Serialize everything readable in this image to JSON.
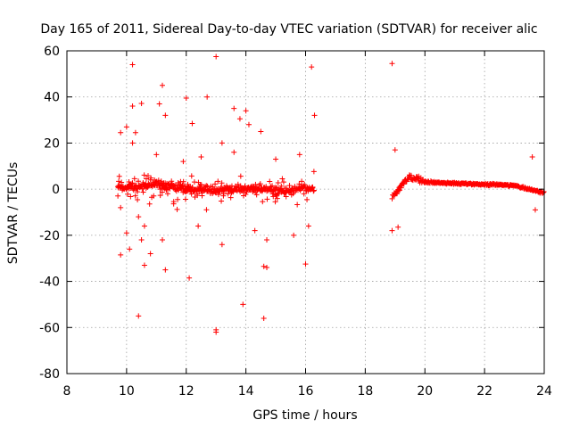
{
  "chart_data": {
    "type": "scatter",
    "title": "Day 165 of 2011, Sidereal Day-to-day VTEC variation (SDTVAR) for receiver alic",
    "xlabel": "GPS time / hours",
    "ylabel": "SDTVAR / TECUs",
    "xlim": [
      8,
      24
    ],
    "ylim": [
      -80,
      60
    ],
    "xticks": [
      8,
      10,
      12,
      14,
      16,
      18,
      20,
      22,
      24
    ],
    "yticks": [
      -80,
      -60,
      -40,
      -20,
      0,
      20,
      40,
      60
    ],
    "grid": true,
    "marker": "+",
    "color": "#ff0000",
    "series": [
      {
        "name": "SDTVAR",
        "trace": [
          [
            9.7,
            1.5
          ],
          [
            10.0,
            0.5
          ],
          [
            10.5,
            1.2
          ],
          [
            11.0,
            1.8
          ],
          [
            11.5,
            1.0
          ],
          [
            12.0,
            0.3
          ],
          [
            12.5,
            -0.5
          ],
          [
            13.0,
            -0.3
          ],
          [
            13.5,
            0.3
          ],
          [
            14.0,
            0.5
          ],
          [
            14.5,
            0.2
          ],
          [
            15.0,
            -0.8
          ],
          [
            15.3,
            -1.2
          ],
          [
            15.6,
            -0.5
          ],
          [
            16.0,
            0.5
          ],
          [
            16.3,
            0.8
          ],
          [
            18.9,
            -3.5
          ],
          [
            19.1,
            -0.5
          ],
          [
            19.3,
            3.0
          ],
          [
            19.5,
            5.0
          ],
          [
            19.7,
            4.5
          ],
          [
            20.0,
            3.2
          ],
          [
            20.5,
            2.8
          ],
          [
            21.0,
            2.5
          ],
          [
            21.5,
            2.3
          ],
          [
            22.0,
            2.0
          ],
          [
            22.5,
            2.0
          ],
          [
            23.0,
            1.5
          ],
          [
            23.5,
            0.0
          ],
          [
            23.8,
            -1.0
          ],
          [
            24.0,
            -1.5
          ]
        ],
        "outliers": [
          [
            10.2,
            54
          ],
          [
            13.0,
            57.5
          ],
          [
            18.9,
            54.5
          ],
          [
            16.2,
            53
          ],
          [
            11.2,
            45
          ],
          [
            12.7,
            40
          ],
          [
            11.1,
            37
          ],
          [
            10.5,
            37.2
          ],
          [
            12.0,
            39.5
          ],
          [
            10.2,
            36
          ],
          [
            11.3,
            32
          ],
          [
            16.3,
            32
          ],
          [
            13.6,
            35
          ],
          [
            12.2,
            28.5
          ],
          [
            10.0,
            27
          ],
          [
            9.8,
            24.5
          ],
          [
            10.3,
            24.5
          ],
          [
            14.1,
            28
          ],
          [
            14.5,
            25
          ],
          [
            13.8,
            30.5
          ],
          [
            14.0,
            34
          ],
          [
            10.2,
            20
          ],
          [
            11.0,
            15
          ],
          [
            11.9,
            12
          ],
          [
            12.5,
            14
          ],
          [
            13.2,
            20
          ],
          [
            13.6,
            16
          ],
          [
            15.0,
            13
          ],
          [
            15.8,
            15
          ],
          [
            19.0,
            17
          ],
          [
            23.6,
            14
          ],
          [
            9.8,
            -8
          ],
          [
            10.4,
            -12
          ],
          [
            10.6,
            -16
          ],
          [
            10.0,
            -19
          ],
          [
            10.5,
            -22
          ],
          [
            11.2,
            -22
          ],
          [
            12.4,
            -16
          ],
          [
            13.2,
            -24
          ],
          [
            14.3,
            -18
          ],
          [
            14.7,
            -22
          ],
          [
            15.6,
            -20
          ],
          [
            16.1,
            -16
          ],
          [
            9.8,
            -28.5
          ],
          [
            10.6,
            -33
          ],
          [
            10.8,
            -28
          ],
          [
            10.1,
            -26
          ],
          [
            11.3,
            -35
          ],
          [
            12.1,
            -38.5
          ],
          [
            14.6,
            -33.5
          ],
          [
            14.7,
            -34
          ],
          [
            16.0,
            -32.5
          ],
          [
            10.4,
            -55
          ],
          [
            13.9,
            -50
          ],
          [
            14.6,
            -56
          ],
          [
            13.0,
            -61
          ],
          [
            13.0,
            -62
          ],
          [
            19.1,
            -16.5
          ],
          [
            18.9,
            -18
          ],
          [
            23.7,
            -9
          ]
        ]
      }
    ]
  }
}
